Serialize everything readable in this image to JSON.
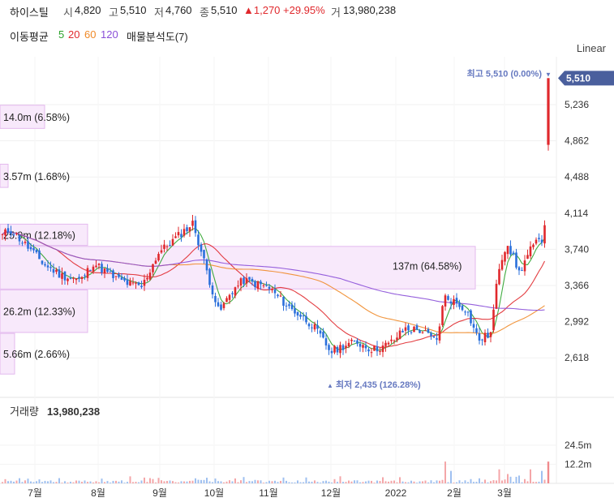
{
  "header": {
    "name": "하이스틸",
    "open_label": "시",
    "open": "4,820",
    "high_label": "고",
    "high": "5,510",
    "low_label": "저",
    "low": "4,760",
    "close_label": "종",
    "close": "5,510",
    "change": "▲1,270 +29.95%",
    "volume_label": "거",
    "volume": "13,980,238"
  },
  "ma": {
    "title": "이동평균",
    "periods": [
      {
        "label": "5",
        "color": "#2ca32c"
      },
      {
        "label": "20",
        "color": "#e0282c"
      },
      {
        "label": "60",
        "color": "#f08a28"
      },
      {
        "label": "120",
        "color": "#8a4fd8"
      }
    ],
    "volume_profile_label": "매물분석도(7)"
  },
  "scale_mode": "Linear",
  "chart_data": {
    "type": "candlestick",
    "y_ticks": [
      "5,236",
      "4,862",
      "4,488",
      "4,114",
      "3,740",
      "3,366",
      "2,992",
      "2,618"
    ],
    "y_tick_values": [
      5236,
      4862,
      4488,
      4114,
      3740,
      3366,
      2992,
      2618
    ],
    "ylim": [
      2430,
      5600
    ],
    "current_price_label": "5,510",
    "current_price": 5510,
    "high_marker": "최고 5,510 (0.00%)",
    "low_marker": "최저 2,435 (126.28%)",
    "x_ticks": [
      "7월",
      "8월",
      "9월",
      "10월",
      "11월",
      "12월",
      "2022",
      "2월",
      "3월"
    ],
    "volume_profile": [
      {
        "label": "14.0m (6.58%)",
        "price_from": 4990,
        "price_to": 5230,
        "share": 6.58
      },
      {
        "label": "3.57m (1.68%)",
        "price_from": 4380,
        "price_to": 4620,
        "share": 1.68
      },
      {
        "label": "25.9m (12.18%)",
        "price_from": 3780,
        "price_to": 4000,
        "share": 12.18
      },
      {
        "label": "137m (64.58%)",
        "price_from": 3330,
        "price_to": 3770,
        "share": 64.58
      },
      {
        "label": "26.2m (12.33%)",
        "price_from": 2880,
        "price_to": 3320,
        "share": 12.33
      },
      {
        "label": "5.66m (2.66%)",
        "price_from": 2450,
        "price_to": 2870,
        "share": 2.66
      }
    ],
    "volume_title": "거래량",
    "volume_value": "13,980,238",
    "volume_ticks": [
      "24.5m",
      "12.2m"
    ],
    "volume_tick_values": [
      24.5,
      12.2
    ],
    "colors": {
      "up": "#e0282c",
      "down": "#2a6fdb",
      "ma5": "#2ca32c",
      "ma20": "#e0282c",
      "ma60": "#f08a28",
      "ma120": "#8a4fd8",
      "profile_fill": "#f8e9fb",
      "profile_stroke": "#e3b9ee",
      "marker": "#6679c0"
    }
  }
}
